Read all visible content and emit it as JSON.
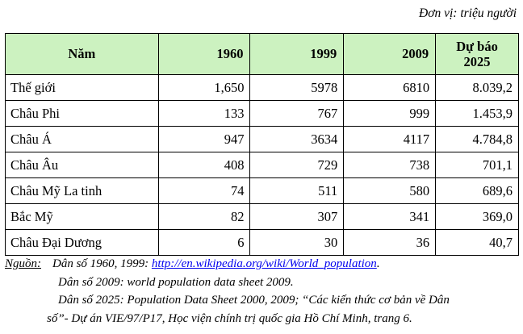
{
  "unit_label": "Đơn vị: triệu người",
  "table": {
    "headers": [
      "Năm",
      "1960",
      "1999",
      "2009",
      "Dự báo",
      "2025"
    ],
    "rows": [
      [
        "Thế giới",
        "1,650",
        "5978",
        "6810",
        "8.039,2"
      ],
      [
        "Châu Phi",
        "133",
        "767",
        "999",
        "1.453,9"
      ],
      [
        "Châu Á",
        "947",
        "3634",
        "4117",
        "4.784,8"
      ],
      [
        "Châu Âu",
        "408",
        "729",
        "738",
        "701,1"
      ],
      [
        "Châu Mỹ La tinh",
        "74",
        "511",
        "580",
        "689,6"
      ],
      [
        "Bắc Mỹ",
        "82",
        "307",
        "341",
        "369,0"
      ],
      [
        "Châu Đại Dương",
        "6",
        "30",
        "36",
        "40,7"
      ]
    ]
  },
  "source": {
    "label": "Nguồn:",
    "line1_prefix": "Dân số 1960, 1999: ",
    "line1_link": "http://en.wikipedia.org/wiki/World_population",
    "line1_suffix": ".",
    "line2": "Dân số 2009: world population data sheet 2009.",
    "line3": "Dân số 2025: Population Data Sheet 2000, 2009; “Các kiến thức cơ bản về Dân",
    "line4": "số”- Dự án VIE/97/P17, Học viện chính trị quốc gia Hồ Chí Minh, trang 6."
  }
}
